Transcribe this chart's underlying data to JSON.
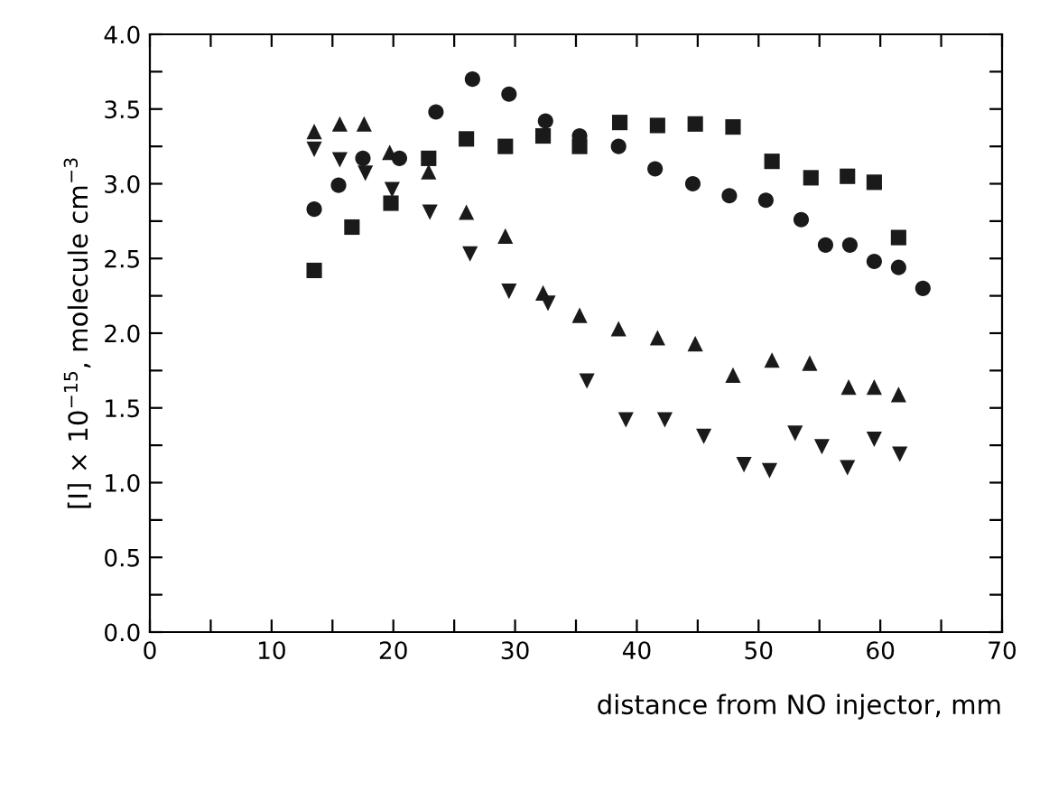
{
  "chart_data": {
    "type": "scatter",
    "xlabel": "distance from NO injector, mm",
    "ylabel": "[I] × 10$^{−15}$, molecule cm$^{−3}$",
    "xlim": [
      0,
      70
    ],
    "ylim": [
      0,
      4
    ],
    "xticks": [
      0,
      {
        "value": 5,
        "label": null
      },
      10,
      {
        "value": 15,
        "label": null
      },
      20,
      {
        "value": 25,
        "label": null
      },
      30,
      {
        "value": 35,
        "label": null
      },
      40,
      {
        "value": 45,
        "label": null
      },
      50,
      {
        "value": 55,
        "label": null
      },
      60,
      {
        "value": 65,
        "label": null
      },
      70
    ],
    "yticks": [
      "0.0",
      {
        "value": 0.25,
        "label": null
      },
      0.5,
      {
        "value": 0.75,
        "label": null
      },
      "1.0",
      {
        "value": 1.25,
        "label": null
      },
      1.5,
      {
        "value": 1.75,
        "label": null
      },
      "2.0",
      {
        "value": 2.25,
        "label": null
      },
      2.5,
      {
        "value": 2.75,
        "label": null
      },
      "3.0",
      {
        "value": 3.25,
        "label": null
      },
      3.5,
      {
        "value": 3.75,
        "label": null
      },
      "4.0"
    ],
    "series": [
      {
        "color": "#1a1a1a",
        "marker": "square",
        "x": [
          13.5,
          16.6,
          19.8,
          22.9,
          26.0,
          29.2,
          32.3,
          35.3,
          38.6,
          41.7,
          44.8,
          47.9,
          51.1,
          54.3,
          57.3,
          59.5,
          61.5
        ],
        "values": [
          2.42,
          2.71,
          2.87,
          3.17,
          3.3,
          3.25,
          3.32,
          3.25,
          3.41,
          3.39,
          3.4,
          3.38,
          3.15,
          3.04,
          3.05,
          3.01,
          2.64
        ]
      },
      {
        "color": "#1a1a1a",
        "marker": "circle",
        "x": [
          13.5,
          15.5,
          17.5,
          20.5,
          23.5,
          26.5,
          29.5,
          32.5,
          35.3,
          38.5,
          41.5,
          44.6,
          47.6,
          50.6,
          53.5,
          55.5,
          57.5,
          59.5,
          61.5,
          63.5
        ],
        "values": [
          2.83,
          2.99,
          3.17,
          3.17,
          3.48,
          3.7,
          3.6,
          3.42,
          3.32,
          3.25,
          3.1,
          3.0,
          2.92,
          2.89,
          2.76,
          2.59,
          2.59,
          2.48,
          2.44,
          2.3
        ]
      },
      {
        "color": "#1a1a1a",
        "marker": "triangle",
        "x": [
          13.5,
          15.6,
          17.6,
          19.7,
          22.9,
          26.0,
          29.2,
          32.3,
          35.3,
          38.5,
          41.7,
          44.8,
          47.9,
          51.1,
          54.2,
          57.4,
          59.5,
          61.5
        ],
        "values": [
          3.35,
          3.4,
          3.4,
          3.21,
          3.08,
          2.81,
          2.65,
          2.27,
          2.12,
          2.03,
          1.97,
          1.93,
          1.72,
          1.82,
          1.8,
          1.64,
          1.64,
          1.59
        ]
      },
      {
        "color": "#1a1a1a",
        "marker": "triangle_down",
        "x": [
          13.5,
          15.6,
          17.7,
          19.9,
          23.0,
          26.3,
          29.5,
          32.7,
          35.9,
          39.1,
          42.3,
          45.5,
          48.8,
          50.9,
          53.0,
          55.2,
          57.3,
          59.5,
          61.6
        ],
        "values": [
          3.23,
          3.16,
          3.07,
          2.96,
          2.81,
          2.53,
          2.28,
          2.2,
          1.68,
          1.42,
          1.42,
          1.31,
          1.12,
          1.08,
          1.33,
          1.24,
          1.1,
          1.29,
          1.19
        ]
      }
    ]
  }
}
